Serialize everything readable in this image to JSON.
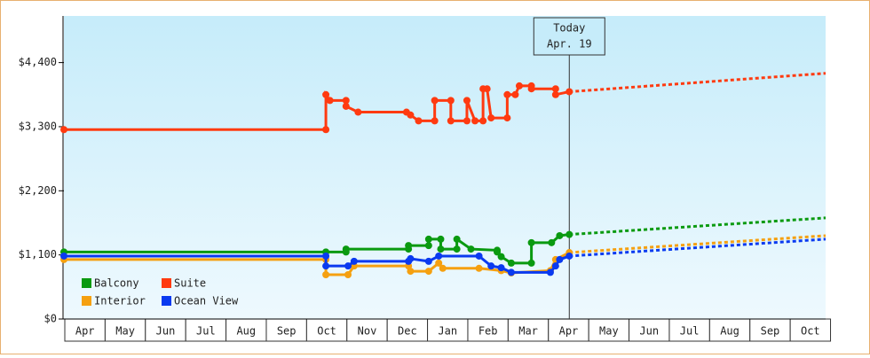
{
  "chart_data": {
    "type": "line",
    "xlim": [
      0,
      18.9
    ],
    "ylim": [
      0,
      5200
    ],
    "yticks": [
      {
        "value": 0,
        "label": "$0"
      },
      {
        "value": 1100,
        "label": "$1,100"
      },
      {
        "value": 2200,
        "label": "$2,200"
      },
      {
        "value": 3300,
        "label": "$3,300"
      },
      {
        "value": 4400,
        "label": "$4,400"
      }
    ],
    "xticks": [
      {
        "value": 0.5,
        "label": "Apr"
      },
      {
        "value": 1.5,
        "label": "May"
      },
      {
        "value": 2.5,
        "label": "Jun"
      },
      {
        "value": 3.5,
        "label": "Jul"
      },
      {
        "value": 4.5,
        "label": "Aug"
      },
      {
        "value": 5.5,
        "label": "Sep"
      },
      {
        "value": 6.5,
        "label": "Oct"
      },
      {
        "value": 7.5,
        "label": "Nov"
      },
      {
        "value": 8.5,
        "label": "Dec"
      },
      {
        "value": 9.5,
        "label": "Jan"
      },
      {
        "value": 10.5,
        "label": "Feb"
      },
      {
        "value": 11.5,
        "label": "Mar"
      },
      {
        "value": 12.5,
        "label": "Apr"
      },
      {
        "value": 13.5,
        "label": "May"
      },
      {
        "value": 14.5,
        "label": "Jun"
      },
      {
        "value": 15.5,
        "label": "Jul"
      },
      {
        "value": 16.5,
        "label": "Aug"
      },
      {
        "value": 17.5,
        "label": "Sep"
      },
      {
        "value": 18.5,
        "label": "Oct"
      }
    ],
    "today": {
      "x": 12.54,
      "label": "Today",
      "date": "Apr. 19"
    },
    "series": [
      {
        "name": "Balcony",
        "color": "#0a9a10",
        "x": [
          0,
          6.5,
          7.0,
          7.0,
          8.55,
          8.55,
          9.05,
          9.05,
          9.35,
          9.35,
          9.75,
          9.75,
          10.1,
          10.75,
          10.75,
          10.85,
          11.1,
          11.6,
          11.6,
          12.1,
          12.3,
          12.54
        ],
        "values": [
          1150,
          1150,
          1150,
          1200,
          1200,
          1260,
          1260,
          1370,
          1370,
          1200,
          1200,
          1370,
          1200,
          1180,
          1150,
          1070,
          960,
          960,
          1310,
          1310,
          1430,
          1450
        ],
        "projection": {
          "x": [
            12.54,
            18.9
          ],
          "values": [
            1450,
            1735
          ]
        }
      },
      {
        "name": "Suite",
        "color": "#ff3a10",
        "x": [
          0,
          6.5,
          6.5,
          6.6,
          7.0,
          7.0,
          7.3,
          8.5,
          8.6,
          8.8,
          9.2,
          9.2,
          9.6,
          9.6,
          10.0,
          10.0,
          10.2,
          10.4,
          10.4,
          10.5,
          10.6,
          11.0,
          11.0,
          11.2,
          11.3,
          11.6,
          11.6,
          12.2,
          12.2,
          12.54
        ],
        "values": [
          3250,
          3250,
          3850,
          3750,
          3750,
          3650,
          3550,
          3550,
          3500,
          3400,
          3400,
          3750,
          3750,
          3400,
          3400,
          3750,
          3400,
          3400,
          3950,
          3950,
          3450,
          3450,
          3850,
          3850,
          4000,
          4000,
          3950,
          3950,
          3850,
          3900
        ],
        "projection": {
          "x": [
            12.54,
            18.9
          ],
          "values": [
            3900,
            4216
          ]
        }
      },
      {
        "name": "Interior",
        "color": "#f5a010",
        "x": [
          0,
          6.5,
          6.5,
          7.05,
          7.2,
          8.55,
          8.6,
          9.05,
          9.3,
          9.4,
          10.3,
          10.85,
          11.1,
          12.07,
          12.2,
          12.54
        ],
        "values": [
          1020,
          1020,
          760,
          760,
          910,
          910,
          820,
          820,
          960,
          870,
          870,
          830,
          790,
          830,
          1020,
          1140
        ],
        "projection": {
          "x": [
            12.54,
            18.9
          ],
          "values": [
            1140,
            1430
          ]
        }
      },
      {
        "name": "Ocean View",
        "color": "#0a3af0",
        "x": [
          0,
          6.5,
          6.5,
          7.05,
          7.2,
          8.55,
          8.6,
          9.05,
          9.3,
          10.3,
          10.6,
          10.85,
          11.1,
          12.07,
          12.2,
          12.3,
          12.54
        ],
        "values": [
          1080,
          1080,
          910,
          910,
          990,
          990,
          1035,
          990,
          1080,
          1080,
          910,
          880,
          800,
          800,
          910,
          1020,
          1080
        ],
        "projection": {
          "x": [
            12.54,
            18.9
          ],
          "values": [
            1080,
            1370
          ]
        }
      }
    ]
  }
}
